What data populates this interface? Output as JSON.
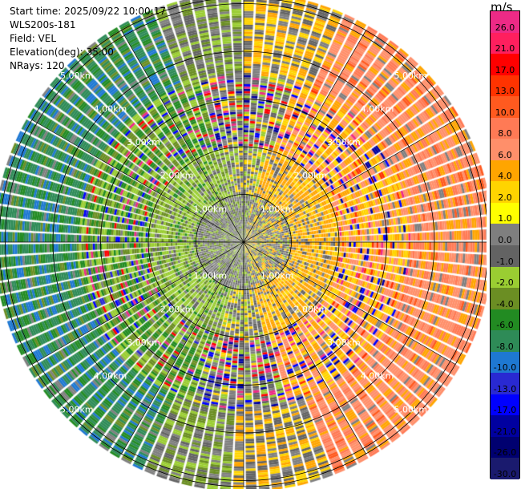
{
  "header": {
    "start_time": "Start time: 2025/09/22 10:00:17",
    "instrument": "WLS200s-181",
    "field": "Field: VEL",
    "elevation": "Elevation(deg): 35.00",
    "nrays": "NRays: 120"
  },
  "chart_data": {
    "type": "heatmap",
    "projection": "polar (PPI)",
    "field": "VEL",
    "n_rays": 120,
    "ring_labels": [
      "1.00km",
      "2.00km",
      "3.00km",
      "4.00km",
      "5.00km"
    ],
    "ring_ranges_km": [
      1,
      2,
      3,
      4,
      5
    ],
    "colorbar": {
      "unit": "m/s",
      "ticks": [
        "26.0",
        "21.0",
        "17.0",
        "13.0",
        "10.0",
        "8.0",
        "6.0",
        "4.0",
        "2.0",
        "1.0",
        "0.0",
        "-1.0",
        "-2.0",
        "-4.0",
        "-6.0",
        "-8.0",
        "-10.0",
        "-13.0",
        "-17.0",
        "-21.0",
        "-26.0",
        "-30.0"
      ],
      "colors": [
        "#ed2a86",
        "#ff1f5e",
        "#ff0000",
        "#ff3300",
        "#ff5a1f",
        "#ff7a55",
        "#ff8f6a",
        "#ffa500",
        "#ffd400",
        "#ffff00",
        "#7f7f7f",
        "#636363",
        "#9acd32",
        "#6b8e23",
        "#228b22",
        "#2e8b57",
        "#1e78d2",
        "#2929d2",
        "#0000ff",
        "#0000a0",
        "#000070",
        "#1a1a6e"
      ]
    }
  }
}
